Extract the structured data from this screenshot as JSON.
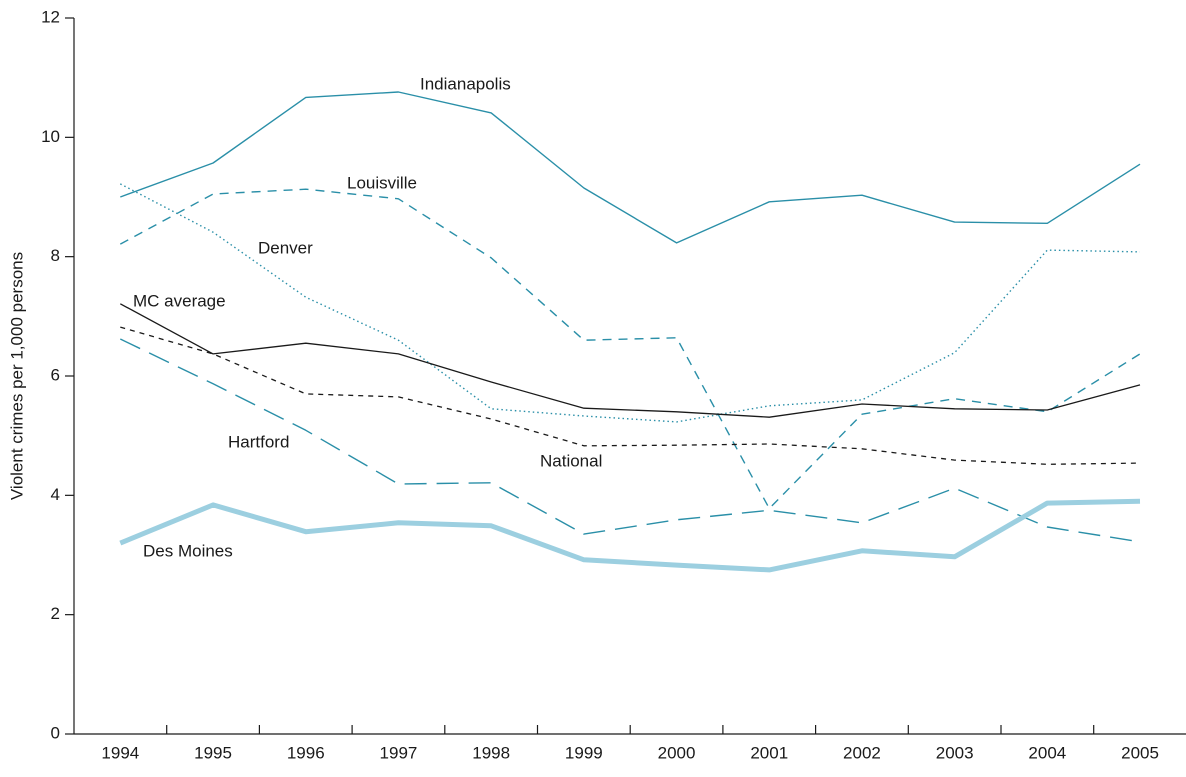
{
  "chart_data": {
    "type": "line",
    "y_label": "Violent crimes per 1,000 persons",
    "categories": [
      "1994",
      "1995",
      "1996",
      "1997",
      "1998",
      "1999",
      "2000",
      "2001",
      "2002",
      "2003",
      "2004",
      "2005"
    ],
    "ylim": [
      0,
      12
    ],
    "yticks": [
      0,
      2,
      4,
      6,
      8,
      10,
      12
    ],
    "series": [
      {
        "name": "Indianapolis",
        "color": "#2a8fa8",
        "dash": "solid",
        "line_width": 1.4,
        "values": [
          9.0,
          9.57,
          10.67,
          10.76,
          10.41,
          9.15,
          8.23,
          8.92,
          9.03,
          8.58,
          8.56,
          9.55
        ]
      },
      {
        "name": "Louisville",
        "color": "#2a8fa8",
        "dash": "dashed",
        "line_width": 1.4,
        "values": [
          8.21,
          9.05,
          9.13,
          8.97,
          7.98,
          6.6,
          6.64,
          3.78,
          5.36,
          5.62,
          5.4,
          6.37
        ]
      },
      {
        "name": "Denver",
        "color": "#2a8fa8",
        "dash": "dotted",
        "line_width": 1.4,
        "values": [
          9.22,
          8.41,
          7.32,
          6.6,
          5.45,
          5.33,
          5.23,
          5.5,
          5.6,
          6.39,
          8.11,
          8.08
        ]
      },
      {
        "name": "MC average",
        "color": "#1a1a1a",
        "dash": "solid",
        "line_width": 1.3,
        "values": [
          7.21,
          6.37,
          6.55,
          6.37,
          5.9,
          5.46,
          5.4,
          5.31,
          5.53,
          5.45,
          5.43,
          5.85
        ]
      },
      {
        "name": "National",
        "color": "#1a1a1a",
        "dash": "short-dashed",
        "line_width": 1.3,
        "values": [
          6.82,
          6.37,
          5.7,
          5.65,
          5.28,
          4.83,
          4.84,
          4.86,
          4.78,
          4.59,
          4.52,
          4.54
        ]
      },
      {
        "name": "Hartford",
        "color": "#2a8fa8",
        "dash": "long-dashed",
        "line_width": 1.4,
        "values": [
          6.62,
          5.87,
          5.09,
          4.19,
          4.21,
          3.35,
          3.59,
          3.75,
          3.54,
          4.12,
          3.47,
          3.22
        ]
      },
      {
        "name": "Des Moines",
        "color": "#9ccfe0",
        "dash": "solid",
        "line_width": 5,
        "values": [
          3.2,
          3.84,
          3.39,
          3.54,
          3.49,
          2.92,
          2.83,
          2.75,
          3.07,
          2.97,
          3.87,
          3.9
        ]
      }
    ]
  }
}
